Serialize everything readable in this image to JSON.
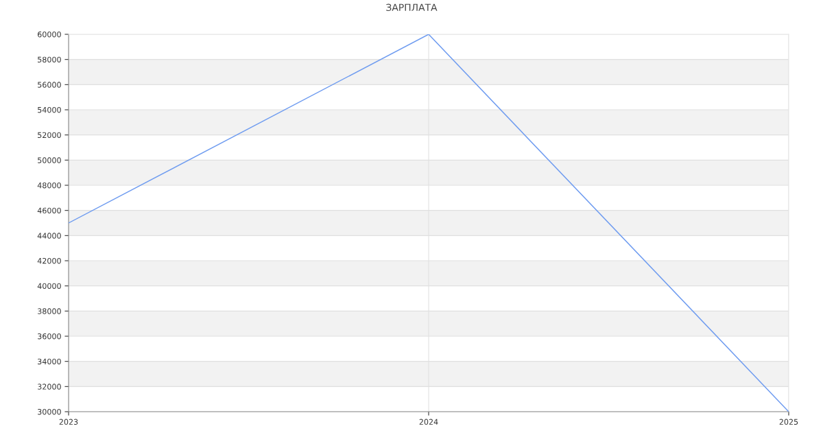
{
  "chart_data": {
    "type": "line",
    "title": "ЗАРПЛАТА",
    "x": [
      "2023",
      "2024",
      "2025"
    ],
    "series": [
      {
        "color": "#6f9cf0",
        "values": [
          45000,
          60000,
          30000
        ]
      }
    ],
    "xlim": [
      "2023",
      "2025"
    ],
    "xticks": [
      "2023",
      "2024",
      "2025"
    ],
    "ylim": [
      30000,
      60000
    ],
    "yticks": [
      30000,
      32000,
      34000,
      36000,
      38000,
      40000,
      42000,
      44000,
      46000,
      48000,
      50000,
      52000,
      54000,
      56000,
      58000,
      60000
    ],
    "grid": true,
    "marker": "none",
    "line_style": "solid"
  }
}
